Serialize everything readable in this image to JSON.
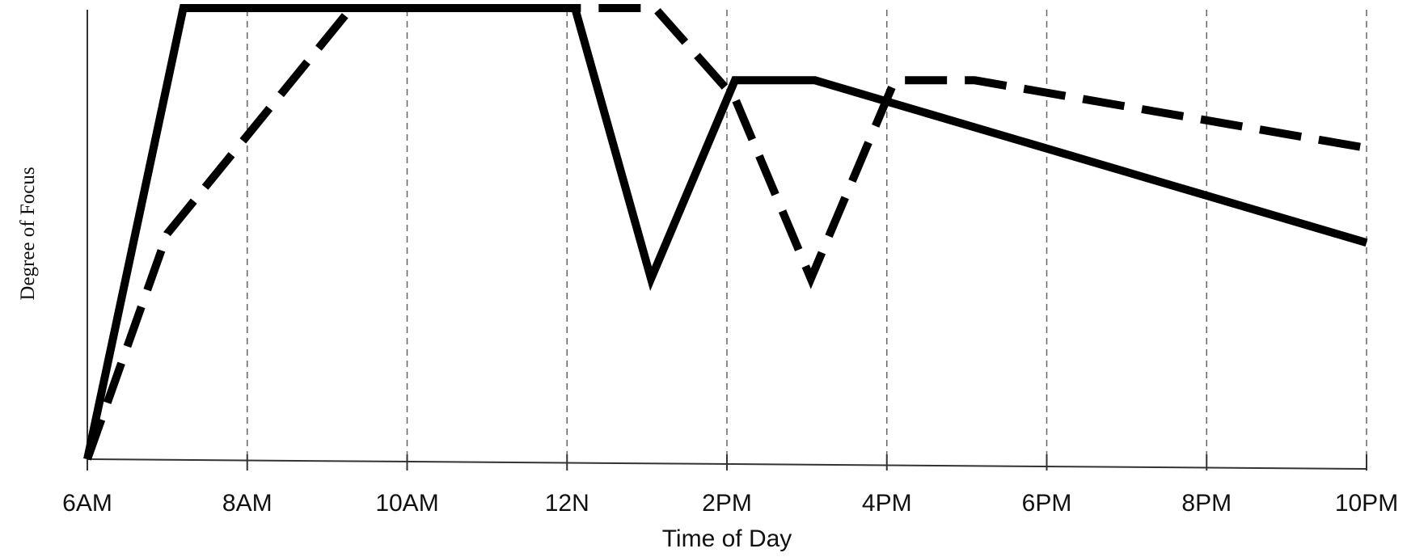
{
  "chart_data": {
    "type": "line",
    "title": "",
    "xlabel": "Time of Day",
    "ylabel": "Degree of Focus",
    "x_ticks": [
      "6AM",
      "8AM",
      "10AM",
      "12N",
      "2PM",
      "4PM",
      "6PM",
      "8PM",
      "10PM"
    ],
    "xlim": [
      6,
      22
    ],
    "ylim": [
      0,
      100
    ],
    "y_ticks_shown": false,
    "grid": "vertical dashed lines at each x tick",
    "legend": "none",
    "series": [
      {
        "style": "solid",
        "color": "#000000",
        "x": [
          6,
          7.2,
          12.1,
          13.05,
          14.1,
          15.1,
          22
        ],
        "y": [
          0,
          100,
          100,
          40,
          84,
          84,
          48
        ]
      },
      {
        "style": "dashed",
        "color": "#000000",
        "x": [
          6,
          7,
          9.3,
          13.1,
          14.1,
          15.05,
          16.1,
          17.1,
          22
        ],
        "y": [
          0,
          50,
          100,
          100,
          80,
          40,
          84,
          84,
          69
        ]
      }
    ]
  }
}
